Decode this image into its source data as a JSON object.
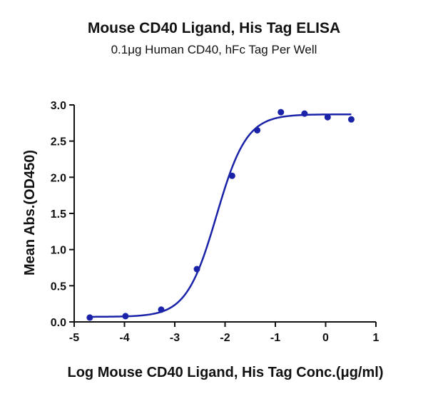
{
  "chart_data": {
    "type": "scatter",
    "title": "Mouse CD40 Ligand, His Tag ELISA",
    "subtitle": "0.1μg Human CD40, hFc Tag Per Well",
    "xlabel": "Log Mouse CD40 Ligand, His Tag Conc.(μg/ml)",
    "ylabel": "Mean Abs.(OD450)",
    "xlim": [
      -5,
      1
    ],
    "ylim": [
      0,
      3.0
    ],
    "x_ticks": [
      -5,
      -4,
      -3,
      -2,
      -1,
      0,
      1
    ],
    "y_ticks": [
      0.0,
      0.5,
      1.0,
      1.5,
      2.0,
      2.5,
      3.0
    ],
    "x_tick_labels": [
      "-5",
      "-4",
      "-3",
      "-2",
      "-1",
      "0",
      "1"
    ],
    "y_tick_labels": [
      "0.0",
      "0.5",
      "1.0",
      "1.5",
      "2.0",
      "2.5",
      "3.0"
    ],
    "grid": false,
    "color": "#1a23a8",
    "series": [
      {
        "x": [
          -4.69,
          -3.98,
          -3.27,
          -2.56,
          -1.86,
          -1.36,
          -0.89,
          -0.42,
          0.04,
          0.51
        ],
        "y": [
          0.06,
          0.08,
          0.17,
          0.73,
          2.02,
          2.65,
          2.9,
          2.88,
          2.83,
          2.8
        ]
      }
    ],
    "fit": {
      "model": "4PL",
      "bottom": 0.07,
      "top": 2.87,
      "log_ec50": -2.17,
      "hill_slope": 1.45
    }
  }
}
